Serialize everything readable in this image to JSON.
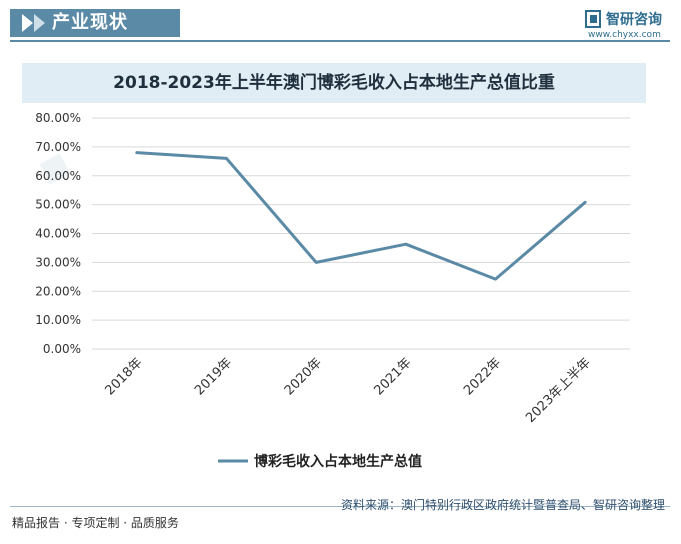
{
  "header": {
    "title": "产业现状"
  },
  "brand": {
    "name": "智研咨询",
    "url": "www.chyxx.com"
  },
  "chart_title": "2018-2023年上半年澳门博彩毛收入占本地生产总值比重",
  "footer": {
    "source": "资料来源：澳门特别行政区政府统计暨普查局、智研咨询整理",
    "tagline": "精品报告 · 专项定制 · 品质服务"
  },
  "colors": {
    "line": "#5b8aa6",
    "accent": "#5b8aa6",
    "grid": "#d9d9d9"
  },
  "chart_data": {
    "type": "line",
    "title": "2018-2023年上半年澳门博彩毛收入占本地生产总值比重",
    "categories": [
      "2018年",
      "2019年",
      "2020年",
      "2021年",
      "2022年",
      "2023年上半年"
    ],
    "y_ticks": [
      "0.00%",
      "10.00%",
      "20.00%",
      "30.00%",
      "40.00%",
      "50.00%",
      "60.00%",
      "70.00%",
      "80.00%"
    ],
    "ylim": [
      0,
      80
    ],
    "grid": true,
    "legend_position": "bottom",
    "series": [
      {
        "name": "博彩毛收入占本地生产总值",
        "values": [
          68.0,
          66.0,
          30.0,
          36.3,
          24.2,
          50.8
        ]
      }
    ]
  }
}
